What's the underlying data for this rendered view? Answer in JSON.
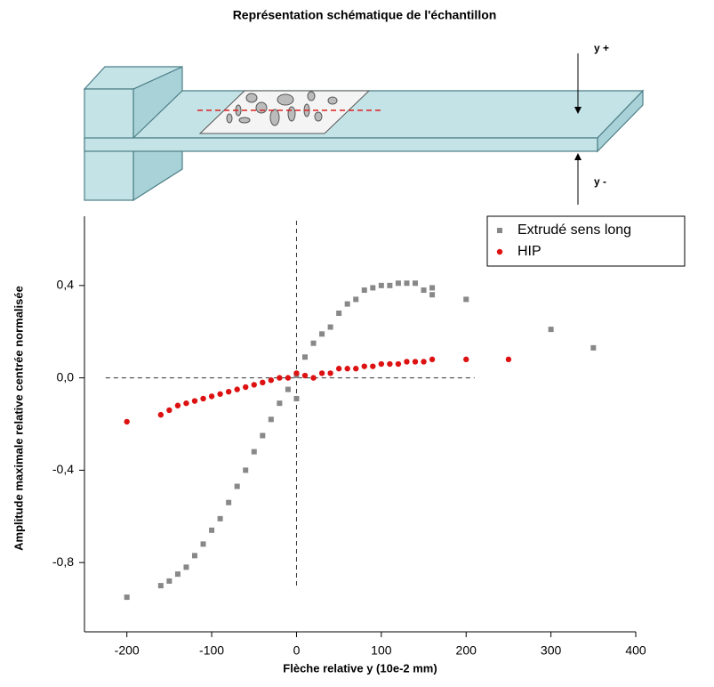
{
  "chart_data": {
    "type": "scatter",
    "title": "Représentation schématique de l'échantillon",
    "annotations": [
      "y +",
      "y -"
    ],
    "x_label": "Flèche relative y (10e-2 mm)",
    "y_label": "Amplitude maximale relative centrée normalisée",
    "xlim": [
      -250,
      400
    ],
    "xticks": [
      -200,
      -100,
      0,
      100,
      200,
      300,
      400
    ],
    "ylim": [
      -1.1,
      0.7
    ],
    "yticks": [
      {
        "value": 0.4,
        "label": "0,4"
      },
      {
        "value": 0,
        "label": "0,0"
      },
      {
        "value": -0.4,
        "label": "-0,4"
      },
      {
        "value": -0.8,
        "label": "-0,8"
      }
    ],
    "legend": "top-right",
    "series": [
      {
        "name": "Extrudé sens long",
        "color": "#888888",
        "marker": "square",
        "x": [
          -200,
          -160,
          -150,
          -140,
          -130,
          -120,
          -110,
          -100,
          -90,
          -80,
          -70,
          -60,
          -50,
          -40,
          -30,
          -20,
          -10,
          0,
          0,
          10,
          20,
          30,
          40,
          50,
          60,
          70,
          80,
          90,
          100,
          110,
          120,
          130,
          140,
          150,
          160,
          160,
          200,
          300,
          350
        ],
        "values": [
          -0.95,
          -0.9,
          -0.88,
          -0.85,
          -0.82,
          -0.77,
          -0.72,
          -0.66,
          -0.61,
          -0.54,
          -0.47,
          -0.4,
          -0.32,
          -0.25,
          -0.18,
          -0.11,
          -0.05,
          -0.09,
          0.01,
          0.09,
          0.15,
          0.19,
          0.22,
          0.28,
          0.32,
          0.34,
          0.38,
          0.39,
          0.4,
          0.4,
          0.41,
          0.41,
          0.41,
          0.38,
          0.36,
          0.39,
          0.34,
          0.21,
          0.13
        ]
      },
      {
        "name": "HIP",
        "color": "#dd1111",
        "marker": "circle",
        "x": [
          -200,
          -160,
          -150,
          -140,
          -130,
          -120,
          -110,
          -100,
          -90,
          -80,
          -70,
          -60,
          -50,
          -40,
          -30,
          -20,
          -10,
          0,
          10,
          20,
          30,
          40,
          50,
          60,
          70,
          80,
          90,
          100,
          110,
          120,
          130,
          140,
          150,
          160,
          200,
          250
        ],
        "values": [
          -0.19,
          -0.16,
          -0.14,
          -0.12,
          -0.11,
          -0.1,
          -0.09,
          -0.08,
          -0.07,
          -0.06,
          -0.05,
          -0.04,
          -0.03,
          -0.02,
          -0.01,
          0,
          0,
          0.02,
          0.01,
          0,
          0.02,
          0.02,
          0.04,
          0.04,
          0.04,
          0.05,
          0.05,
          0.06,
          0.06,
          0.06,
          0.07,
          0.07,
          0.07,
          0.08,
          0.08,
          0.08
        ]
      }
    ]
  }
}
